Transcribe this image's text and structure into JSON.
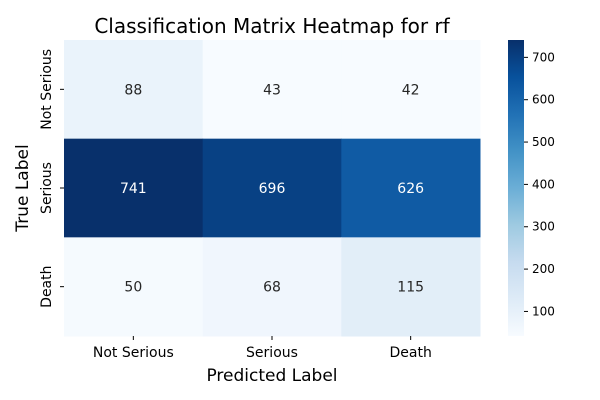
{
  "chart_data": {
    "type": "heatmap",
    "title": "Classification Matrix Heatmap for rf",
    "xlabel": "Predicted Label",
    "ylabel": "True Label",
    "x_categories": [
      "Not Serious",
      "Serious",
      "Death"
    ],
    "y_categories": [
      "Not Serious",
      "Serious",
      "Death"
    ],
    "values": [
      [
        88,
        43,
        42
      ],
      [
        741,
        696,
        626
      ],
      [
        50,
        68,
        115
      ]
    ],
    "colormap": "Blues",
    "vmin": 42,
    "vmax": 741,
    "colorbar_ticks": [
      100,
      200,
      300,
      400,
      500,
      600,
      700
    ],
    "colorbar_tick_labels": [
      "100",
      "200",
      "300",
      "400",
      "500",
      "600",
      "700"
    ]
  }
}
